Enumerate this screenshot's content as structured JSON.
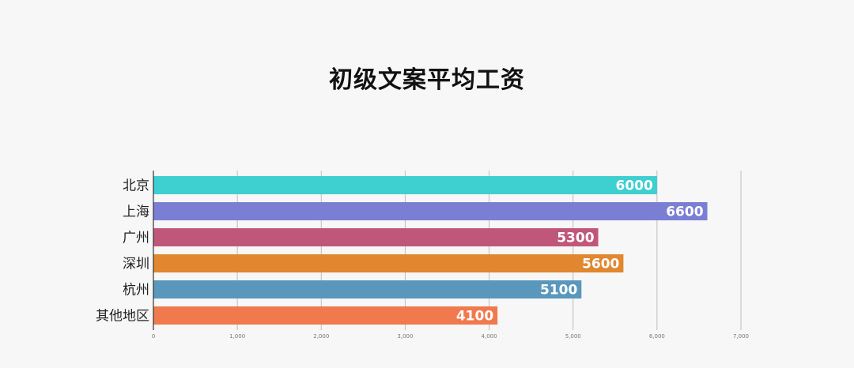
{
  "chart_data": {
    "type": "bar",
    "orientation": "horizontal",
    "title": "初级文案平均工资",
    "categories": [
      "北京",
      "上海",
      "广州",
      "深圳",
      "杭州",
      "其他地区"
    ],
    "values": [
      6000,
      6600,
      5300,
      5600,
      5100,
      4100
    ],
    "colors": [
      "#3ecfd0",
      "#7b7fd4",
      "#c0577a",
      "#e0872f",
      "#5a97bd",
      "#f07a4e"
    ],
    "xlim": [
      0,
      7000
    ],
    "xticks": [
      0,
      1000,
      2000,
      3000,
      4000,
      5000,
      6000,
      7000
    ],
    "xtick_labels": [
      "0",
      "1,000",
      "2,000",
      "3,000",
      "4,000",
      "5,000",
      "6,000",
      "7,000"
    ],
    "grid": true,
    "data_labels": true
  }
}
